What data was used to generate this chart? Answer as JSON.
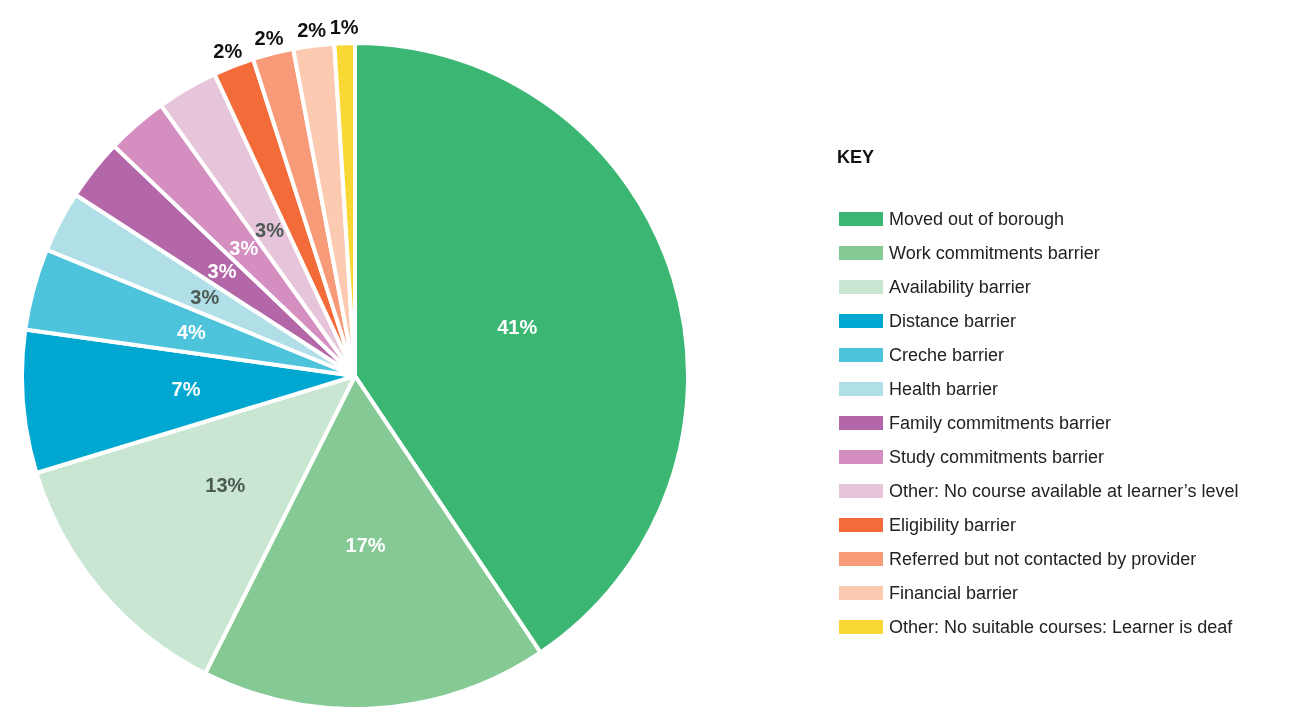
{
  "chart_data": {
    "type": "pie",
    "legend_title": "KEY",
    "legend": "right",
    "categories": [
      "Moved out of borough",
      "Work commitments barrier",
      "Availability barrier",
      "Distance barrier",
      "Creche barrier",
      "Health barrier",
      "Family commitments barrier",
      "Study commitments barrier",
      "Other: No course available at learner’s level",
      "Eligibility barrier",
      "Referred but not contacted by provider",
      "Financial barrier",
      "Other: No suitable courses: Learner is deaf"
    ],
    "values": [
      41,
      17,
      13,
      7,
      4,
      3,
      3,
      3,
      3,
      2,
      2,
      2,
      1
    ],
    "value_labels": [
      "41%",
      "17%",
      "13%",
      "7%",
      "4%",
      "3%",
      "3%",
      "3%",
      "3%",
      "2%",
      "2%",
      "2%",
      "1%"
    ],
    "colors": [
      "#3bb673",
      "#85c995",
      "#c8e6d2",
      "#00a8d1",
      "#4dc3dc",
      "#b1dfe8",
      "#b366a8",
      "#d48fc0",
      "#e6c5da",
      "#f26b38",
      "#f79a78",
      "#fbcab0",
      "#f9d835"
    ]
  }
}
